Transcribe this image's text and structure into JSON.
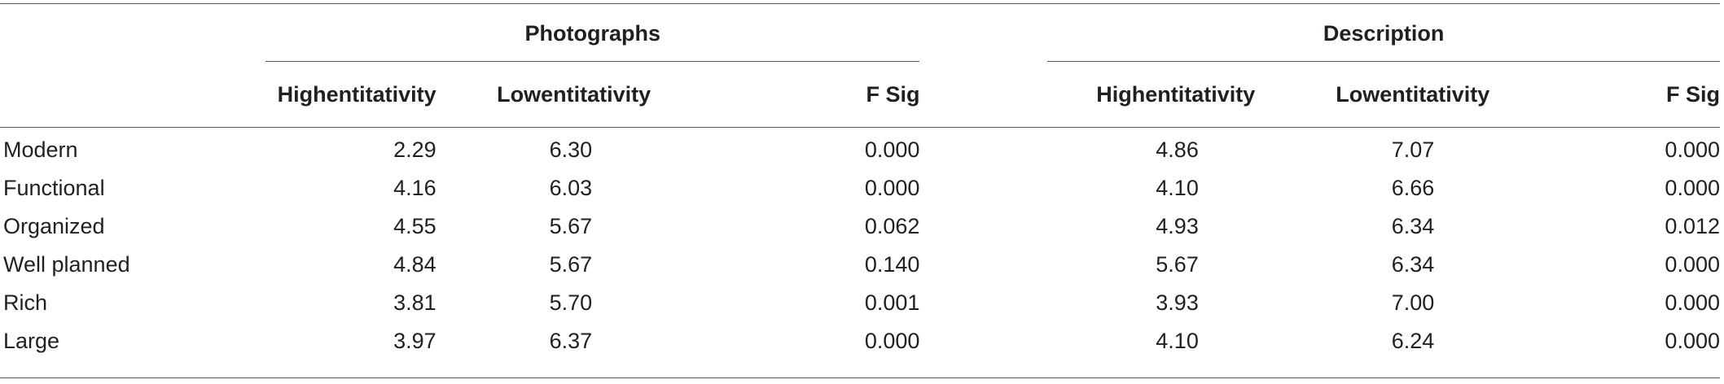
{
  "groups": {
    "photographs": "Photographs",
    "description": "Description"
  },
  "columns": {
    "photo_high": "Highentitativity",
    "photo_low": "Lowentitativity",
    "photo_fsig": "F Sig",
    "desc_high": "Highentitativity",
    "desc_low": "Lowentitativity",
    "desc_fsig": "F Sig"
  },
  "rows": [
    {
      "label": "Modern",
      "photo_high": "2.29",
      "photo_low": "6.30",
      "photo_fsig": "0.000",
      "desc_high": "4.86",
      "desc_low": "7.07",
      "desc_fsig": "0.000"
    },
    {
      "label": "Functional",
      "photo_high": "4.16",
      "photo_low": "6.03",
      "photo_fsig": "0.000",
      "desc_high": "4.10",
      "desc_low": "6.66",
      "desc_fsig": "0.000"
    },
    {
      "label": "Organized",
      "photo_high": "4.55",
      "photo_low": "5.67",
      "photo_fsig": "0.062",
      "desc_high": "4.93",
      "desc_low": "6.34",
      "desc_fsig": "0.012"
    },
    {
      "label": "Well planned",
      "photo_high": "4.84",
      "photo_low": "5.67",
      "photo_fsig": "0.140",
      "desc_high": "5.67",
      "desc_low": "6.34",
      "desc_fsig": "0.000"
    },
    {
      "label": "Rich",
      "photo_high": "3.81",
      "photo_low": "5.70",
      "photo_fsig": "0.001",
      "desc_high": "3.93",
      "desc_low": "7.00",
      "desc_fsig": "0.000"
    },
    {
      "label": "Large",
      "photo_high": "3.97",
      "photo_low": "6.37",
      "photo_fsig": "0.000",
      "desc_high": "4.10",
      "desc_low": "6.24",
      "desc_fsig": "0.000"
    }
  ]
}
